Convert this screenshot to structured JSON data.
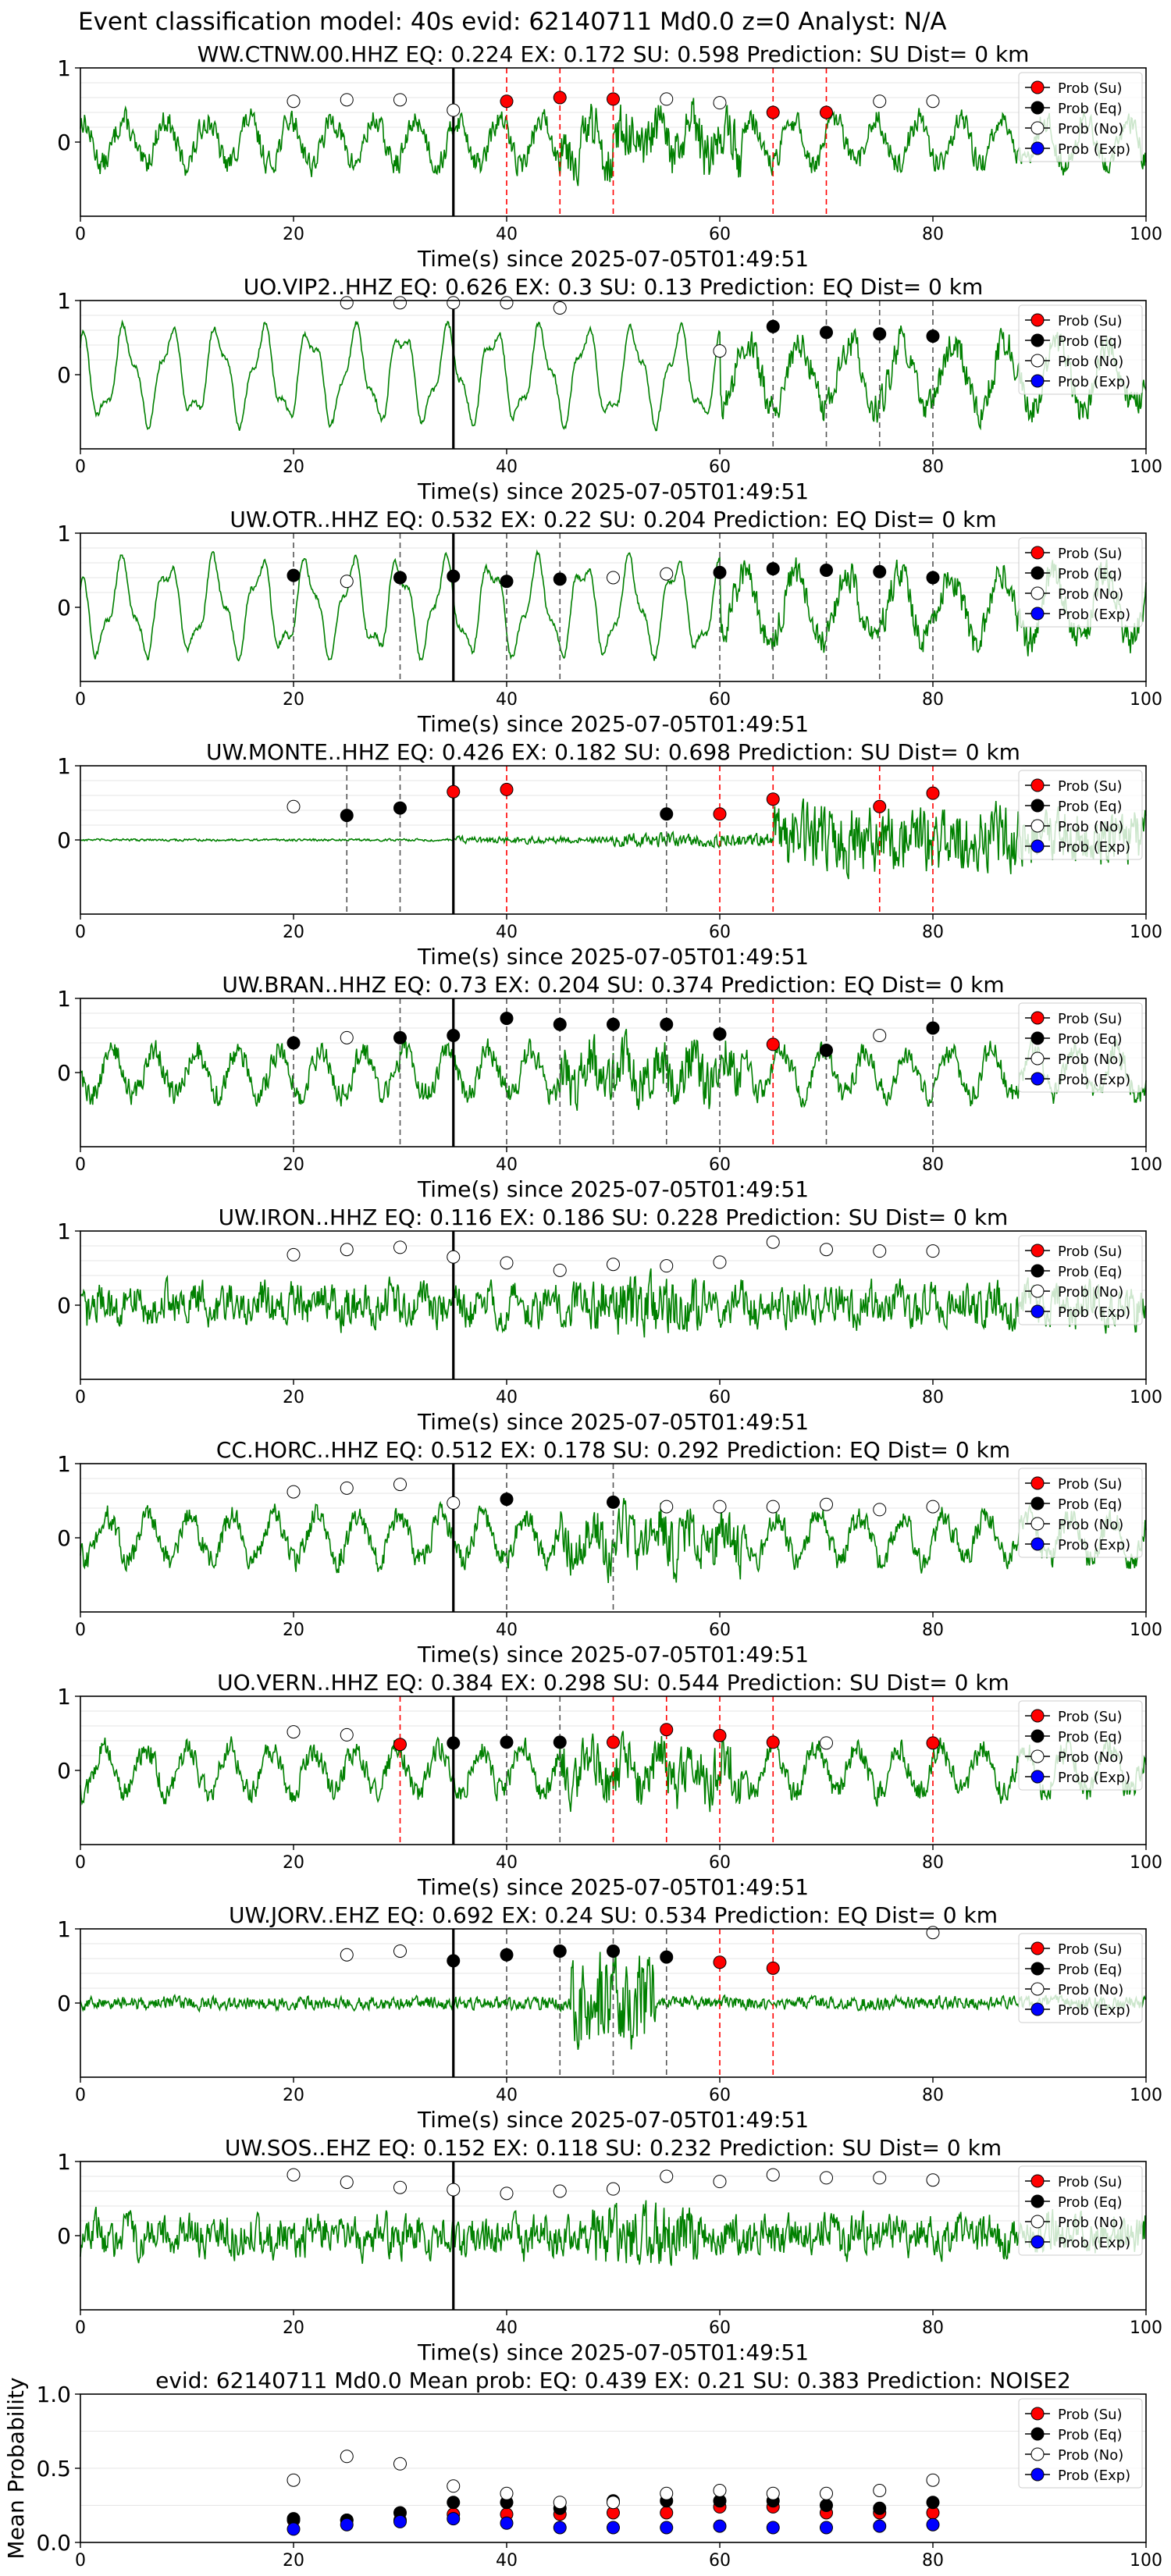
{
  "figure": {
    "suptitle": "Event classification model: 40s evid: 62140711 Md0.0 z=0 Analyst: N/A",
    "xlabel": "Time(s) since 2025-07-05T01:49:51",
    "legend": [
      "Prob (Su)",
      "Prob (Eq)",
      "Prob (No)",
      "Prob (Exp)"
    ],
    "colors": {
      "su": "#ff0000",
      "eq": "#000000",
      "no": "#ffffff",
      "exp": "#0000ff",
      "trace": "#008000"
    },
    "origin_time": 35
  },
  "chart_data": [
    {
      "type": "line",
      "title": "WW.CTNW.00.HHZ   EQ: 0.224  EX: 0.172  SU: 0.598   Prediction: SU    Dist= 0 km",
      "xlim": [
        0,
        100
      ],
      "ylim": [
        -1,
        1
      ],
      "xticks": [
        0,
        20,
        40,
        60,
        80,
        100
      ],
      "yticks": [
        0,
        1
      ],
      "style": "mixed",
      "points": [
        [
          20,
          "no",
          0.55
        ],
        [
          25,
          "no",
          0.57
        ],
        [
          30,
          "no",
          0.57
        ],
        [
          35,
          "no",
          0.43
        ],
        [
          40,
          "su",
          0.55
        ],
        [
          45,
          "su",
          0.6
        ],
        [
          50,
          "su",
          0.58
        ],
        [
          55,
          "no",
          0.58
        ],
        [
          60,
          "no",
          0.53
        ],
        [
          65,
          "su",
          0.4
        ],
        [
          70,
          "su",
          0.4
        ],
        [
          75,
          "no",
          0.55
        ],
        [
          80,
          "no",
          0.55
        ]
      ]
    },
    {
      "type": "line",
      "title": "UO.VIP2..HHZ   EQ: 0.626  EX: 0.3  SU: 0.13   Prediction: EQ    Dist= 0 km",
      "xlim": [
        0,
        100
      ],
      "ylim": [
        -1,
        1
      ],
      "xticks": [
        0,
        20,
        40,
        60,
        80,
        100
      ],
      "yticks": [
        0,
        1
      ],
      "style": "osc",
      "points": [
        [
          25,
          "no",
          0.97
        ],
        [
          30,
          "no",
          0.97
        ],
        [
          35,
          "no",
          0.97
        ],
        [
          40,
          "no",
          0.97
        ],
        [
          45,
          "no",
          0.9
        ],
        [
          60,
          "no",
          0.32
        ],
        [
          65,
          "eq",
          0.65
        ],
        [
          70,
          "eq",
          0.57
        ],
        [
          75,
          "eq",
          0.55
        ],
        [
          80,
          "eq",
          0.52
        ]
      ]
    },
    {
      "type": "line",
      "title": "UW.OTR..HHZ   EQ: 0.532  EX: 0.22  SU: 0.204   Prediction: EQ    Dist= 0 km",
      "xlim": [
        0,
        100
      ],
      "ylim": [
        -1,
        1
      ],
      "xticks": [
        0,
        20,
        40,
        60,
        80,
        100
      ],
      "yticks": [
        0,
        1
      ],
      "style": "osc",
      "points": [
        [
          20,
          "eq",
          0.43
        ],
        [
          25,
          "no",
          0.35
        ],
        [
          30,
          "eq",
          0.4
        ],
        [
          35,
          "eq",
          0.42
        ],
        [
          40,
          "eq",
          0.35
        ],
        [
          45,
          "eq",
          0.38
        ],
        [
          50,
          "no",
          0.4
        ],
        [
          55,
          "no",
          0.45
        ],
        [
          60,
          "eq",
          0.47
        ],
        [
          65,
          "eq",
          0.52
        ],
        [
          70,
          "eq",
          0.5
        ],
        [
          75,
          "eq",
          0.48
        ],
        [
          80,
          "eq",
          0.4
        ]
      ]
    },
    {
      "type": "line",
      "title": "UW.MONTE..HHZ   EQ: 0.426  EX: 0.182  SU: 0.698   Prediction: SU    Dist= 0 km",
      "xlim": [
        0,
        100
      ],
      "ylim": [
        -1,
        1
      ],
      "xticks": [
        0,
        20,
        40,
        60,
        80,
        100
      ],
      "yticks": [
        0,
        1
      ],
      "style": "quiet",
      "points": [
        [
          20,
          "no",
          0.45
        ],
        [
          25,
          "eq",
          0.33
        ],
        [
          30,
          "eq",
          0.43
        ],
        [
          35,
          "su",
          0.65
        ],
        [
          40,
          "su",
          0.68
        ],
        [
          55,
          "eq",
          0.35
        ],
        [
          60,
          "su",
          0.35
        ],
        [
          65,
          "su",
          0.55
        ],
        [
          75,
          "su",
          0.45
        ],
        [
          80,
          "su",
          0.63
        ]
      ]
    },
    {
      "type": "line",
      "title": "UW.BRAN..HHZ   EQ: 0.73  EX: 0.204  SU: 0.374   Prediction: EQ    Dist= 0 km",
      "xlim": [
        0,
        100
      ],
      "ylim": [
        -1,
        1
      ],
      "xticks": [
        0,
        20,
        40,
        60,
        80,
        100
      ],
      "yticks": [
        0,
        1
      ],
      "style": "mixed",
      "points": [
        [
          20,
          "eq",
          0.4
        ],
        [
          25,
          "no",
          0.47
        ],
        [
          30,
          "eq",
          0.47
        ],
        [
          35,
          "eq",
          0.5
        ],
        [
          40,
          "eq",
          0.73
        ],
        [
          45,
          "eq",
          0.65
        ],
        [
          50,
          "eq",
          0.65
        ],
        [
          55,
          "eq",
          0.65
        ],
        [
          60,
          "eq",
          0.52
        ],
        [
          65,
          "su",
          0.38
        ],
        [
          70,
          "eq",
          0.3
        ],
        [
          75,
          "no",
          0.5
        ],
        [
          80,
          "eq",
          0.6
        ]
      ]
    },
    {
      "type": "line",
      "title": "UW.IRON..HHZ   EQ: 0.116  EX: 0.186  SU: 0.228   Prediction: SU    Dist= 0 km",
      "xlim": [
        0,
        100
      ],
      "ylim": [
        -1,
        1
      ],
      "xticks": [
        0,
        20,
        40,
        60,
        80,
        100
      ],
      "yticks": [
        0,
        1
      ],
      "style": "noisy",
      "points": [
        [
          20,
          "no",
          0.68
        ],
        [
          25,
          "no",
          0.75
        ],
        [
          30,
          "no",
          0.78
        ],
        [
          35,
          "no",
          0.65
        ],
        [
          40,
          "no",
          0.57
        ],
        [
          45,
          "no",
          0.47
        ],
        [
          50,
          "no",
          0.55
        ],
        [
          55,
          "no",
          0.53
        ],
        [
          60,
          "no",
          0.58
        ],
        [
          65,
          "no",
          0.85
        ],
        [
          70,
          "no",
          0.75
        ],
        [
          75,
          "no",
          0.73
        ],
        [
          80,
          "no",
          0.73
        ]
      ]
    },
    {
      "type": "line",
      "title": "CC.HORC..HHZ   EQ: 0.512  EX: 0.178  SU: 0.292   Prediction: EQ    Dist= 0 km",
      "xlim": [
        0,
        100
      ],
      "ylim": [
        -1,
        1
      ],
      "xticks": [
        0,
        20,
        40,
        60,
        80,
        100
      ],
      "yticks": [
        0,
        1
      ],
      "style": "mixed",
      "points": [
        [
          20,
          "no",
          0.62
        ],
        [
          25,
          "no",
          0.67
        ],
        [
          30,
          "no",
          0.72
        ],
        [
          35,
          "no",
          0.47
        ],
        [
          40,
          "eq",
          0.52
        ],
        [
          50,
          "eq",
          0.48
        ],
        [
          55,
          "no",
          0.42
        ],
        [
          60,
          "no",
          0.42
        ],
        [
          65,
          "no",
          0.42
        ],
        [
          70,
          "no",
          0.45
        ],
        [
          75,
          "no",
          0.38
        ],
        [
          80,
          "no",
          0.42
        ]
      ]
    },
    {
      "type": "line",
      "title": "UO.VERN..HHZ   EQ: 0.384  EX: 0.298  SU: 0.544   Prediction: SU    Dist= 0 km",
      "xlim": [
        0,
        100
      ],
      "ylim": [
        -1,
        1
      ],
      "xticks": [
        0,
        20,
        40,
        60,
        80,
        100
      ],
      "yticks": [
        0,
        1
      ],
      "style": "mixed",
      "points": [
        [
          20,
          "no",
          0.52
        ],
        [
          25,
          "no",
          0.48
        ],
        [
          30,
          "su",
          0.35
        ],
        [
          35,
          "eq",
          0.37
        ],
        [
          40,
          "eq",
          0.38
        ],
        [
          45,
          "eq",
          0.38
        ],
        [
          50,
          "su",
          0.38
        ],
        [
          55,
          "su",
          0.55
        ],
        [
          60,
          "su",
          0.47
        ],
        [
          65,
          "su",
          0.38
        ],
        [
          70,
          "no",
          0.37
        ],
        [
          80,
          "su",
          0.37
        ]
      ]
    },
    {
      "type": "line",
      "title": "UW.JORV..EHZ   EQ: 0.692  EX: 0.24  SU: 0.534   Prediction: EQ    Dist= 0 km",
      "xlim": [
        0,
        100
      ],
      "ylim": [
        -1,
        1
      ],
      "xticks": [
        0,
        20,
        40,
        60,
        80,
        100
      ],
      "yticks": [
        0,
        1
      ],
      "style": "quiet",
      "points": [
        [
          25,
          "no",
          0.65
        ],
        [
          30,
          "no",
          0.7
        ],
        [
          35,
          "eq",
          0.57
        ],
        [
          40,
          "eq",
          0.65
        ],
        [
          45,
          "eq",
          0.7
        ],
        [
          50,
          "eq",
          0.7
        ],
        [
          55,
          "eq",
          0.62
        ],
        [
          60,
          "su",
          0.55
        ],
        [
          65,
          "su",
          0.47
        ],
        [
          80,
          "no",
          0.95
        ]
      ]
    },
    {
      "type": "line",
      "title": "UW.SOS..EHZ   EQ: 0.152  EX: 0.118  SU: 0.232   Prediction: SU    Dist= 0 km",
      "xlim": [
        0,
        100
      ],
      "ylim": [
        -1,
        1
      ],
      "xticks": [
        0,
        20,
        40,
        60,
        80,
        100
      ],
      "yticks": [
        0,
        1
      ],
      "style": "noisy",
      "points": [
        [
          20,
          "no",
          0.82
        ],
        [
          25,
          "no",
          0.72
        ],
        [
          30,
          "no",
          0.65
        ],
        [
          35,
          "no",
          0.62
        ],
        [
          40,
          "no",
          0.57
        ],
        [
          45,
          "no",
          0.6
        ],
        [
          50,
          "no",
          0.63
        ],
        [
          55,
          "no",
          0.8
        ],
        [
          60,
          "no",
          0.73
        ],
        [
          65,
          "no",
          0.82
        ],
        [
          70,
          "no",
          0.78
        ],
        [
          75,
          "no",
          0.78
        ],
        [
          80,
          "no",
          0.75
        ]
      ]
    },
    {
      "type": "scatter",
      "title": "evid: 62140711   Md0.0   Mean prob:   EQ: 0.439  EX: 0.21  SU: 0.383   Prediction: NOISE2",
      "ylabel": "Mean Probability",
      "xlim": [
        0,
        100
      ],
      "ylim": [
        0,
        1
      ],
      "xticks": [
        0,
        20,
        40,
        60,
        80,
        100
      ],
      "yticks": [
        0.0,
        0.5,
        1.0
      ],
      "x": [
        20,
        25,
        30,
        35,
        40,
        45,
        50,
        55,
        60,
        65,
        70,
        75,
        80
      ],
      "series": [
        {
          "name": "Prob (Su)",
          "key": "su",
          "values": [
            0.15,
            0.15,
            0.15,
            0.19,
            0.19,
            0.19,
            0.2,
            0.2,
            0.24,
            0.24,
            0.2,
            0.2,
            0.2
          ]
        },
        {
          "name": "Prob (Eq)",
          "key": "eq",
          "values": [
            0.16,
            0.15,
            0.2,
            0.27,
            0.27,
            0.23,
            0.28,
            0.28,
            0.28,
            0.28,
            0.25,
            0.23,
            0.27
          ]
        },
        {
          "name": "Prob (No)",
          "key": "no",
          "values": [
            0.42,
            0.58,
            0.53,
            0.38,
            0.33,
            0.27,
            0.27,
            0.33,
            0.35,
            0.33,
            0.33,
            0.35,
            0.42
          ]
        },
        {
          "name": "Prob (Exp)",
          "key": "exp",
          "values": [
            0.09,
            0.12,
            0.14,
            0.16,
            0.13,
            0.1,
            0.1,
            0.1,
            0.11,
            0.1,
            0.1,
            0.11,
            0.12
          ]
        }
      ]
    }
  ]
}
